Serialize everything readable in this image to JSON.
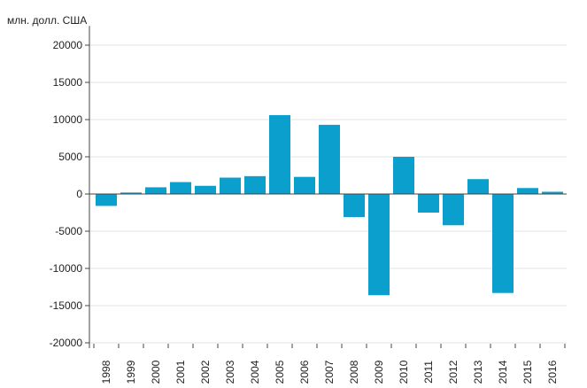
{
  "chart_data": {
    "type": "bar",
    "unit_label": "млн. долл. США",
    "categories": [
      "1998",
      "1999",
      "2000",
      "2001",
      "2002",
      "2003",
      "2004",
      "2005",
      "2006",
      "2007",
      "2008",
      "2009",
      "2010",
      "2011",
      "2012",
      "2013",
      "2014",
      "2015",
      "2016"
    ],
    "values": [
      -1600,
      200,
      900,
      1600,
      1100,
      2200,
      2400,
      10600,
      2300,
      9300,
      -3100,
      -13600,
      5000,
      -2500,
      -4200,
      2000,
      -13300,
      800,
      300
    ],
    "yticks": [
      20000,
      15000,
      10000,
      5000,
      0,
      -5000,
      -10000,
      -15000,
      -20000
    ],
    "ylim": [
      -20000,
      22000
    ],
    "grid": true,
    "colors": {
      "bar": "#0a9fcc",
      "axis": "#444444",
      "grid": "#e3e3e3"
    }
  }
}
